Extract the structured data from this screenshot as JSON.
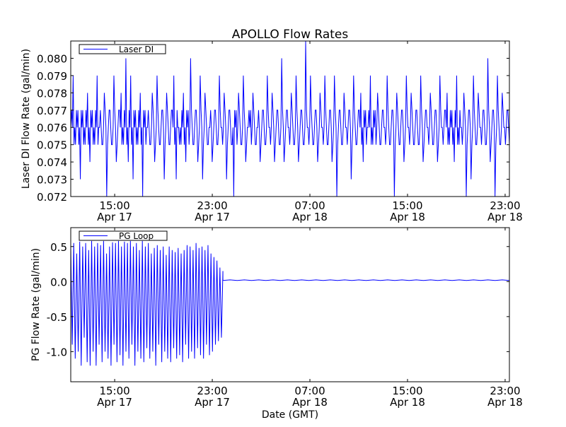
{
  "chart_data": [
    {
      "type": "line",
      "title": "APOLLO Flow Rates",
      "ylabel": "Laser DI Flow Rate (gal/min)",
      "xlabel": "",
      "legend": "Laser DI",
      "legend_placement": "top-left",
      "color": "#0000ff",
      "xlim_hours_from_first_tick": [
        -3.6,
        32.35
      ],
      "ylim": [
        0.072,
        0.081
      ],
      "yticks": [
        0.072,
        0.073,
        0.074,
        0.075,
        0.076,
        0.077,
        0.078,
        0.079,
        0.08
      ],
      "ytick_labels": [
        "0.072",
        "0.073",
        "0.074",
        "0.075",
        "0.076",
        "0.077",
        "0.078",
        "0.079",
        "0.080"
      ],
      "xticks_hours": [
        0,
        8,
        16,
        24,
        32
      ],
      "xtick_labels": [
        [
          "15:00",
          "Apr 17"
        ],
        [
          "23:00",
          "Apr 17"
        ],
        [
          "07:00",
          "Apr 18"
        ],
        [
          "15:00",
          "Apr 18"
        ],
        [
          "23:00",
          "Apr 18"
        ]
      ],
      "values": [
        0.076,
        0.079,
        0.075,
        0.077,
        0.073,
        0.077,
        0.075,
        0.078,
        0.074,
        0.077,
        0.075,
        0.079,
        0.076,
        0.075,
        0.078,
        0.072,
        0.077,
        0.075,
        0.079,
        0.074,
        0.077,
        0.078,
        0.075,
        0.08,
        0.074,
        0.079,
        0.073,
        0.077,
        0.075,
        0.078,
        0.072,
        0.077,
        0.076,
        0.075,
        0.078,
        0.074,
        0.079,
        0.075,
        0.077,
        0.073,
        0.078,
        0.075,
        0.077,
        0.079,
        0.073,
        0.076,
        0.075,
        0.078,
        0.074,
        0.077,
        0.08,
        0.075,
        0.077,
        0.074,
        0.079,
        0.073,
        0.078,
        0.075,
        0.076,
        0.074,
        0.077,
        0.075,
        0.079,
        0.076,
        0.078,
        0.073,
        0.077,
        0.075,
        0.072,
        0.077,
        0.078,
        0.075,
        0.079,
        0.074,
        0.076,
        0.077,
        0.078,
        0.075,
        0.076,
        0.074,
        0.077,
        0.075,
        0.079,
        0.076,
        0.078,
        0.074,
        0.077,
        0.075,
        0.08,
        0.074,
        0.077,
        0.076,
        0.078,
        0.075,
        0.079,
        0.074,
        0.077,
        0.075,
        0.081,
        0.076,
        0.079,
        0.075,
        0.077,
        0.074,
        0.078,
        0.076,
        0.079,
        0.075,
        0.077,
        0.074,
        0.079,
        0.072,
        0.077,
        0.075,
        0.078,
        0.076,
        0.077,
        0.073,
        0.079,
        0.075,
        0.077,
        0.078,
        0.074,
        0.077,
        0.076,
        0.079,
        0.075,
        0.077,
        0.078,
        0.075,
        0.077,
        0.076,
        0.079,
        0.075,
        0.077,
        0.072,
        0.078,
        0.075,
        0.077,
        0.074,
        0.079,
        0.076,
        0.078,
        0.075,
        0.077,
        0.075,
        0.079,
        0.074,
        0.077,
        0.076,
        0.078,
        0.075,
        0.077,
        0.074,
        0.079,
        0.076,
        0.077,
        0.078,
        0.075,
        0.077,
        0.074,
        0.079,
        0.075,
        0.076,
        0.078,
        0.072,
        0.077,
        0.073,
        0.079,
        0.075,
        0.078,
        0.076,
        0.077,
        0.075,
        0.08,
        0.074,
        0.077,
        0.072,
        0.079,
        0.075,
        0.078,
        0.076,
        0.077,
        0.075
      ]
    },
    {
      "type": "line",
      "title": "",
      "ylabel": "PG Flow Rate (gal/min)",
      "xlabel": "Date (GMT)",
      "legend": "PG Loop",
      "legend_placement": "top-left",
      "color": "#0000ff",
      "xlim_hours_from_first_tick": [
        -3.6,
        32.35
      ],
      "ylim": [
        -1.43,
        0.77
      ],
      "yticks": [
        -1.0,
        -0.5,
        0.0,
        0.5
      ],
      "ytick_labels": [
        "-1.0",
        "-0.5",
        "0.0",
        "0.5"
      ],
      "xticks_hours": [
        0,
        8,
        16,
        24,
        32
      ],
      "xtick_labels": [
        [
          "15:00",
          "Apr 17"
        ],
        [
          "23:00",
          "Apr 17"
        ],
        [
          "07:00",
          "Apr 18"
        ],
        [
          "15:00",
          "Apr 18"
        ],
        [
          "23:00",
          "Apr 18"
        ]
      ],
      "active_segment_hours": [
        -3.6,
        8.87
      ],
      "values": [
        0.5,
        -0.9,
        0.55,
        -1.1,
        0.4,
        -1.0,
        0.57,
        -1.2,
        0.5,
        -0.8,
        0.55,
        -1.15,
        0.45,
        -1.2,
        0.58,
        -1.0,
        0.5,
        -1.2,
        0.55,
        -0.9,
        0.52,
        -1.15,
        0.58,
        -1.0,
        0.4,
        -1.1,
        0.5,
        -1.2,
        0.56,
        -0.9,
        0.55,
        -1.15,
        0.58,
        -1.05,
        0.5,
        -1.2,
        0.57,
        -1.0,
        0.55,
        -1.1,
        0.58,
        -0.9,
        0.5,
        -1.2,
        0.55,
        -1.0,
        0.45,
        -1.1,
        0.58,
        -1.15,
        0.5,
        -0.95,
        0.55,
        -1.1,
        0.4,
        -1.0,
        0.48,
        -1.2,
        0.52,
        -0.9,
        0.45,
        -1.15,
        0.5,
        -1.0,
        0.38,
        -1.1,
        0.5,
        -1.15,
        0.45,
        -0.95,
        0.42,
        -1.1,
        0.48,
        -1.05,
        0.4,
        -1.15,
        0.45,
        -0.9,
        0.52,
        -1.1,
        0.5,
        -1.0,
        0.45,
        -1.1,
        0.55,
        -0.95,
        0.48,
        -1.05,
        0.5,
        -1.1,
        0.45,
        -0.9,
        0.52,
        -1.05,
        0.4,
        -1.0,
        0.35,
        -0.9,
        0.3,
        -0.85,
        0.2,
        -0.8,
        0.15
      ],
      "flat_value": 0.02
    }
  ]
}
